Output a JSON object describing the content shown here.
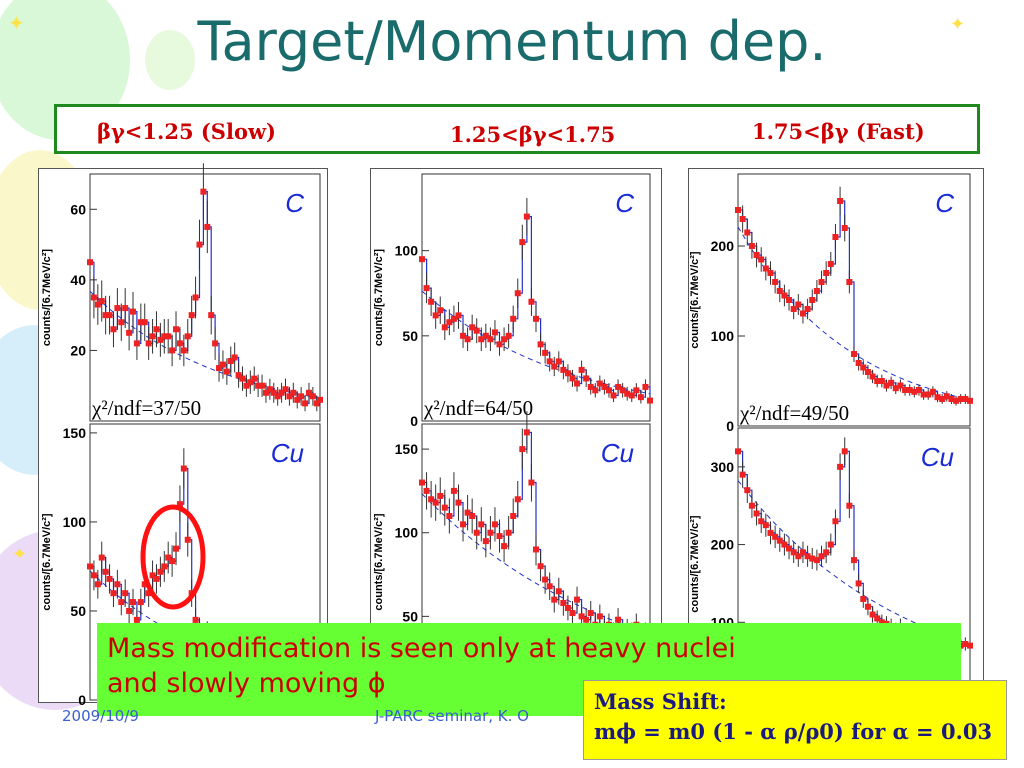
{
  "slide": {
    "title": "Target/Momentum dep.",
    "ranges": [
      "βγ<1.25 (Slow)",
      "1.25<βγ<1.75",
      "1.75<βγ (Fast)"
    ],
    "ylabel": "counts/[6.7MeV/c²]",
    "note_lines": [
      "Mass modification is seen only at heavy nuclei",
      "and slowly moving ϕ"
    ],
    "mass_shift_title": "Mass Shift:",
    "mass_shift_formula": "mϕ = m0 (1 - α ρ/ρ0)  for α = 0.03",
    "footer_date": "2009/10/9",
    "footer_text": "J-PARC seminar, K. O",
    "colors": {
      "title": "#1a6b6b",
      "range_text": "#cc0000",
      "box_border": "#1e8a1e",
      "note_bg": "#66ff33",
      "mass_bg": "#ffff00",
      "points": "#ee2222",
      "fit": "#2233cc"
    }
  },
  "chart_data": [
    {
      "type": "scatter",
      "title": "C",
      "panel": "βγ<1.25 (Slow)",
      "ylabel": "counts/[6.7MeV/c²]",
      "ylim": [
        0,
        70
      ],
      "yticks": [
        20,
        40,
        60
      ],
      "annotation": "χ²/ndf=37/50",
      "x": [
        0,
        0.017,
        0.034,
        0.051,
        0.068,
        0.085,
        0.102,
        0.119,
        0.136,
        0.153,
        0.17,
        0.187,
        0.204,
        0.221,
        0.238,
        0.255,
        0.272,
        0.289,
        0.306,
        0.323,
        0.34,
        0.357,
        0.374,
        0.391,
        0.408,
        0.425,
        0.442,
        0.459,
        0.476,
        0.493,
        0.51,
        0.527,
        0.544,
        0.561,
        0.578,
        0.595,
        0.612,
        0.629,
        0.646,
        0.663,
        0.68,
        0.697,
        0.714,
        0.731,
        0.748,
        0.765,
        0.782,
        0.799,
        0.816,
        0.833,
        0.85,
        0.867,
        0.884,
        0.901,
        0.918,
        0.935,
        0.952,
        0.969,
        0.986,
        1.0
      ],
      "values": [
        45,
        35,
        33,
        34,
        30,
        30,
        26,
        32,
        28,
        32,
        25,
        31,
        22,
        28,
        28,
        22,
        24,
        26,
        23,
        24,
        24,
        20,
        26,
        22,
        20,
        24,
        30,
        35,
        50,
        65,
        55,
        30,
        22,
        15,
        16,
        14,
        17,
        18,
        13,
        12,
        10,
        11,
        12,
        10,
        10,
        8,
        9,
        8,
        7,
        8,
        9,
        7,
        8,
        6,
        7,
        5,
        8,
        7,
        5,
        6
      ]
    },
    {
      "type": "scatter",
      "title": "C",
      "panel": "1.25<βγ<1.75",
      "ylabel": "counts/[6.7MeV/c²]",
      "ylim": [
        0,
        145
      ],
      "yticks": [
        0,
        50,
        100
      ],
      "annotation": "χ²/ndf=64/50",
      "x": [
        0,
        0.02,
        0.04,
        0.06,
        0.08,
        0.1,
        0.12,
        0.14,
        0.16,
        0.18,
        0.2,
        0.22,
        0.24,
        0.26,
        0.28,
        0.3,
        0.32,
        0.34,
        0.36,
        0.38,
        0.4,
        0.42,
        0.44,
        0.46,
        0.48,
        0.5,
        0.52,
        0.54,
        0.56,
        0.58,
        0.6,
        0.62,
        0.64,
        0.66,
        0.68,
        0.7,
        0.72,
        0.74,
        0.76,
        0.78,
        0.8,
        0.82,
        0.84,
        0.86,
        0.88,
        0.9,
        0.92,
        0.94,
        0.96,
        0.98,
        1.0
      ],
      "values": [
        95,
        78,
        70,
        62,
        65,
        55,
        58,
        60,
        62,
        50,
        48,
        55,
        53,
        48,
        50,
        48,
        52,
        45,
        48,
        50,
        60,
        75,
        105,
        120,
        70,
        60,
        45,
        40,
        35,
        32,
        35,
        30,
        28,
        25,
        22,
        30,
        25,
        20,
        18,
        22,
        20,
        18,
        15,
        20,
        18,
        16,
        15,
        18,
        14,
        20,
        12
      ]
    },
    {
      "type": "scatter",
      "title": "C",
      "panel": "1.75<βγ (Fast)",
      "ylabel": "counts/[6.7MeV/c²]",
      "ylim": [
        0,
        280
      ],
      "yticks": [
        0,
        100,
        200
      ],
      "annotation": "χ²/ndf=49/50",
      "x": [
        0,
        0.02,
        0.04,
        0.06,
        0.08,
        0.1,
        0.12,
        0.14,
        0.16,
        0.18,
        0.2,
        0.22,
        0.24,
        0.26,
        0.28,
        0.3,
        0.32,
        0.34,
        0.36,
        0.38,
        0.4,
        0.42,
        0.44,
        0.46,
        0.48,
        0.5,
        0.52,
        0.54,
        0.56,
        0.58,
        0.6,
        0.62,
        0.64,
        0.66,
        0.68,
        0.7,
        0.72,
        0.74,
        0.76,
        0.78,
        0.8,
        0.82,
        0.84,
        0.86,
        0.88,
        0.9,
        0.92,
        0.94,
        0.96,
        0.98,
        1.0
      ],
      "values": [
        240,
        230,
        215,
        200,
        190,
        185,
        175,
        170,
        160,
        150,
        145,
        140,
        130,
        135,
        125,
        130,
        140,
        150,
        160,
        170,
        180,
        210,
        250,
        220,
        160,
        80,
        70,
        65,
        60,
        55,
        50,
        50,
        45,
        48,
        42,
        45,
        40,
        40,
        38,
        40,
        35,
        35,
        38,
        32,
        30,
        33,
        30,
        28,
        30,
        30,
        28
      ]
    },
    {
      "type": "scatter",
      "title": "Cu",
      "panel": "βγ<1.25 (Slow)",
      "ylabel": "counts/[6.7MeV/c²]",
      "ylim": [
        0,
        155
      ],
      "yticks": [
        0,
        50,
        100,
        150
      ],
      "x": [
        0,
        0.017,
        0.034,
        0.051,
        0.068,
        0.085,
        0.102,
        0.119,
        0.136,
        0.153,
        0.17,
        0.187,
        0.204,
        0.221,
        0.238,
        0.255,
        0.272,
        0.289,
        0.306,
        0.323,
        0.34,
        0.357,
        0.374,
        0.391,
        0.408,
        0.425,
        0.442,
        0.459,
        0.476,
        0.493,
        0.51,
        0.527,
        0.544,
        0.561,
        0.578,
        0.595,
        0.612,
        0.629,
        0.646,
        0.663,
        0.68,
        0.697,
        0.714,
        0.731,
        0.748,
        0.765
      ],
      "values": [
        75,
        70,
        65,
        80,
        72,
        68,
        60,
        65,
        55,
        60,
        50,
        55,
        45,
        55,
        65,
        60,
        70,
        68,
        72,
        75,
        80,
        78,
        85,
        110,
        130,
        90,
        60,
        45,
        40,
        35,
        38,
        30,
        25,
        28,
        20,
        25,
        30,
        22,
        18,
        20,
        15,
        18,
        12,
        15,
        10,
        12
      ]
    },
    {
      "type": "scatter",
      "title": "Cu",
      "panel": "1.25<βγ<1.75",
      "ylabel": "counts/[6.7MeV/c²]",
      "ylim": [
        0,
        165
      ],
      "yticks": [
        50,
        100,
        150
      ],
      "x": [
        0,
        0.02,
        0.04,
        0.06,
        0.08,
        0.1,
        0.12,
        0.14,
        0.16,
        0.18,
        0.2,
        0.22,
        0.24,
        0.26,
        0.28,
        0.3,
        0.32,
        0.34,
        0.36,
        0.38,
        0.4,
        0.42,
        0.44,
        0.46,
        0.48,
        0.5,
        0.52,
        0.54,
        0.56,
        0.58,
        0.6,
        0.62,
        0.64,
        0.66,
        0.68,
        0.7,
        0.72,
        0.74,
        0.76,
        0.78,
        0.8,
        0.82,
        0.84,
        0.86,
        0.88,
        0.9,
        0.92,
        0.94,
        0.96,
        0.98,
        1.0
      ],
      "values": [
        130,
        125,
        120,
        118,
        122,
        115,
        110,
        125,
        118,
        105,
        112,
        110,
        100,
        105,
        95,
        100,
        105,
        98,
        92,
        100,
        110,
        120,
        150,
        160,
        130,
        90,
        80,
        72,
        68,
        60,
        65,
        58,
        55,
        52,
        60,
        50,
        48,
        52,
        45,
        50,
        42,
        45,
        40,
        48,
        38,
        42,
        40,
        45,
        38,
        40,
        35
      ]
    },
    {
      "type": "scatter",
      "title": "Cu",
      "panel": "1.75<βγ (Fast)",
      "ylabel": "counts/[6.7MeV/c²]",
      "ylim": [
        0,
        350
      ],
      "yticks": [
        100,
        200,
        300
      ],
      "x": [
        0,
        0.02,
        0.04,
        0.06,
        0.08,
        0.1,
        0.12,
        0.14,
        0.16,
        0.18,
        0.2,
        0.22,
        0.24,
        0.26,
        0.28,
        0.3,
        0.32,
        0.34,
        0.36,
        0.38,
        0.4,
        0.42,
        0.44,
        0.46,
        0.48,
        0.5,
        0.52,
        0.54,
        0.56,
        0.58,
        0.6,
        0.62,
        0.64,
        0.66,
        0.68,
        0.7,
        0.72,
        0.74,
        0.76,
        0.78,
        0.8,
        0.82,
        0.84,
        0.86,
        0.88,
        0.9,
        0.92,
        0.94,
        0.96,
        0.98,
        1.0
      ],
      "values": [
        320,
        290,
        270,
        250,
        240,
        230,
        225,
        215,
        210,
        205,
        200,
        195,
        190,
        185,
        190,
        185,
        182,
        180,
        185,
        190,
        200,
        230,
        300,
        320,
        250,
        180,
        150,
        130,
        120,
        110,
        105,
        100,
        98,
        95,
        90,
        95,
        88,
        85,
        90,
        82,
        80,
        85,
        78,
        80,
        75,
        78,
        72,
        75,
        70,
        72,
        70
      ]
    }
  ]
}
